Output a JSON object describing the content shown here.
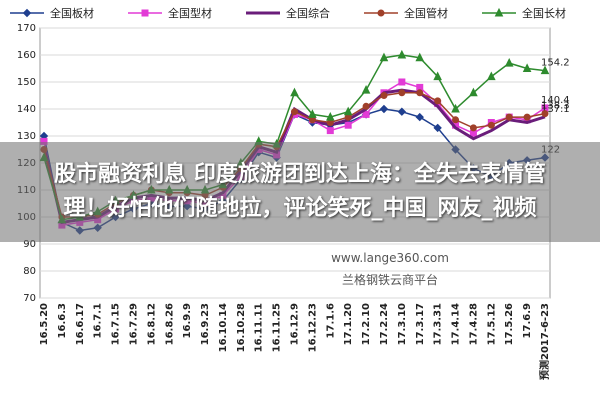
{
  "chart_data": {
    "type": "line",
    "categories": [
      "16.5.20",
      "16.6.3",
      "16.6.17",
      "16.7.1",
      "16.7.15",
      "16.7.29",
      "16.8.12",
      "16.8.26",
      "16.9.9",
      "16.9.23",
      "16.10.14",
      "16.10.28",
      "16.11.11",
      "16.11.25",
      "16.12.9",
      "16.12.23",
      "17.1.6",
      "17.1.20",
      "17.2.10",
      "17.2.24",
      "17.3.10",
      "17.3.17",
      "17.3.31",
      "17.4.14",
      "17.4.28",
      "17.5.12",
      "17.5.26",
      "17.6.9",
      "预测2017-6-23"
    ],
    "series": [
      {
        "name": "全国板材",
        "color": "#1f3f8f",
        "marker": "diamond",
        "values": [
          130,
          98,
          95,
          96,
          100,
          103,
          105,
          104,
          104,
          103,
          106,
          114,
          124,
          122,
          138,
          135,
          134,
          135,
          138,
          140,
          139,
          137,
          133,
          125,
          118,
          115,
          120,
          121,
          122
        ]
      },
      {
        "name": "全国型材",
        "color": "#e23ad6",
        "marker": "square",
        "values": [
          128,
          97,
          98,
          99,
          103,
          106,
          107,
          106,
          106,
          105,
          108,
          115,
          125,
          123,
          138,
          136,
          132,
          134,
          138,
          146,
          150,
          148,
          142,
          134,
          131,
          135,
          137,
          136,
          140.4
        ]
      },
      {
        "name": "全国综合",
        "color": "#6a1d7a",
        "marker": "none",
        "values": [
          126,
          98,
          99,
          100,
          104,
          107,
          108,
          107,
          107,
          106,
          109,
          117,
          126,
          124,
          140,
          136,
          134,
          136,
          140,
          146,
          147,
          146,
          141,
          133,
          129,
          132,
          136,
          135,
          137.1
        ]
      },
      {
        "name": "全国管材",
        "color": "#a0402a",
        "marker": "circle",
        "values": [
          125,
          100,
          100,
          101,
          105,
          108,
          110,
          109,
          109,
          108,
          111,
          118,
          127,
          126,
          139,
          136,
          135,
          137,
          141,
          145,
          146,
          146,
          143,
          136,
          133,
          134,
          137,
          137,
          138.3
        ]
      },
      {
        "name": "全国长材",
        "color": "#2e8b2e",
        "marker": "triangle",
        "values": [
          122,
          99,
          100,
          102,
          106,
          108,
          110,
          110,
          110,
          110,
          112,
          120,
          128,
          127,
          146,
          138,
          137,
          139,
          147,
          159,
          160,
          159,
          152,
          140,
          146,
          152,
          157,
          155,
          154.2
        ]
      }
    ],
    "ylim": [
      70,
      170
    ],
    "yticks": [
      70,
      80,
      90,
      100,
      110,
      120,
      130,
      140,
      150,
      160,
      170
    ],
    "grid": true
  },
  "watermark": [
    "www.lange360.com",
    "兰格钢铁云商平台"
  ],
  "overlay": [
    "股市融资利息 印度旅游团到达上海：全失去表情管",
    "理！好怕他们随地拉，评论笑死_中国_网友_视频"
  ]
}
